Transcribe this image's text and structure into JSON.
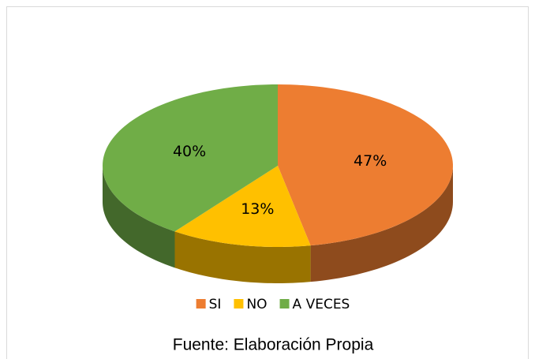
{
  "chart_data": {
    "type": "pie",
    "categories": [
      "SI",
      "NO",
      "A VECES"
    ],
    "values": [
      47,
      13,
      40
    ],
    "value_labels": [
      "47%",
      "13%",
      "40%"
    ],
    "colors": [
      "#ED7D31",
      "#FFC000",
      "#70AD47"
    ],
    "legend": "bottom",
    "source": "Fuente: Elaboración Propia"
  }
}
